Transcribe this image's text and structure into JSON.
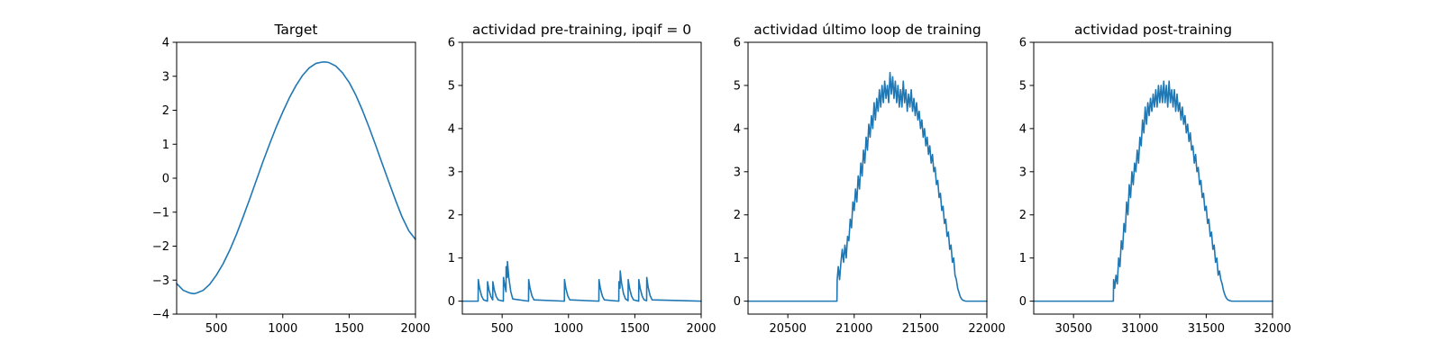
{
  "chart_data": [
    {
      "type": "line",
      "title": "Target",
      "xlabel": "",
      "ylabel": "",
      "xlim": [
        200,
        2000
      ],
      "ylim": [
        -4,
        4
      ],
      "xticks": [
        500,
        1000,
        1500,
        2000
      ],
      "yticks": [
        -4,
        -3,
        -2,
        -1,
        0,
        1,
        2,
        3,
        4
      ],
      "grid": false,
      "color": "#1f77b4",
      "series": [
        {
          "x": [
            200,
            250,
            300,
            330,
            350,
            400,
            450,
            500,
            550,
            600,
            650,
            700,
            750,
            800,
            850,
            900,
            950,
            1000,
            1050,
            1100,
            1150,
            1200,
            1250,
            1300,
            1325,
            1350,
            1400,
            1450,
            1500,
            1550,
            1600,
            1650,
            1700,
            1750,
            1800,
            1850,
            1900,
            1950,
            2000
          ],
          "y": [
            -3.1,
            -3.3,
            -3.38,
            -3.4,
            -3.38,
            -3.3,
            -3.12,
            -2.85,
            -2.52,
            -2.12,
            -1.66,
            -1.15,
            -0.62,
            -0.07,
            0.48,
            1.0,
            1.5,
            1.95,
            2.37,
            2.73,
            3.03,
            3.25,
            3.38,
            3.42,
            3.42,
            3.4,
            3.3,
            3.1,
            2.82,
            2.45,
            2.0,
            1.5,
            0.97,
            0.42,
            -0.12,
            -0.65,
            -1.15,
            -1.55,
            -1.8
          ]
        }
      ]
    },
    {
      "type": "line",
      "title": "actividad pre-training, ipqif = 0",
      "xlabel": "",
      "ylabel": "",
      "xlim": [
        200,
        2000
      ],
      "ylim": [
        -0.3,
        6
      ],
      "xticks": [
        500,
        1000,
        1500,
        2000
      ],
      "yticks": [
        0,
        1,
        2,
        3,
        4,
        5,
        6
      ],
      "grid": false,
      "color": "#1f77b4",
      "series": [
        {
          "x": [
            200,
            319,
            320,
            330,
            345,
            360,
            389,
            390,
            400,
            415,
            425,
            429,
            430,
            440,
            455,
            470,
            509,
            510,
            520,
            529,
            530,
            538,
            540,
            550,
            565,
            580,
            699,
            700,
            710,
            725,
            740,
            969,
            970,
            980,
            995,
            1010,
            1229,
            1230,
            1240,
            1255,
            1270,
            1379,
            1380,
            1388,
            1390,
            1400,
            1415,
            1430,
            1449,
            1450,
            1460,
            1475,
            1490,
            1529,
            1530,
            1540,
            1555,
            1570,
            1589,
            1590,
            1600,
            1615,
            1630,
            2000
          ],
          "y": [
            0,
            0,
            0.5,
            0.3,
            0.12,
            0.03,
            0,
            0.45,
            0.27,
            0.11,
            0.05,
            0.03,
            0.45,
            0.27,
            0.11,
            0.03,
            0,
            0.55,
            0.36,
            0.22,
            0.8,
            0.55,
            0.92,
            0.55,
            0.22,
            0.05,
            0,
            0.5,
            0.3,
            0.12,
            0.03,
            0,
            0.5,
            0.3,
            0.12,
            0.03,
            0,
            0.5,
            0.3,
            0.12,
            0.03,
            0,
            0.45,
            0.3,
            0.7,
            0.42,
            0.17,
            0.05,
            0.01,
            0.5,
            0.3,
            0.12,
            0.03,
            0,
            0.5,
            0.3,
            0.12,
            0.03,
            0.01,
            0.55,
            0.33,
            0.13,
            0.03,
            0
          ]
        }
      ]
    },
    {
      "type": "line",
      "title": "actividad último loop de training",
      "xlabel": "",
      "ylabel": "",
      "xlim": [
        20200,
        22000
      ],
      "ylim": [
        -0.3,
        6
      ],
      "xticks": [
        20500,
        21000,
        21500,
        22000
      ],
      "yticks": [
        0,
        1,
        2,
        3,
        4,
        5,
        6
      ],
      "grid": false,
      "color": "#1f77b4",
      "series": [
        {
          "x": [
            20200,
            20870,
            20872,
            20880,
            20890,
            20900,
            20910,
            20920,
            20930,
            20940,
            20950,
            20960,
            20970,
            20980,
            20990,
            21000,
            21010,
            21020,
            21030,
            21040,
            21050,
            21060,
            21070,
            21080,
            21090,
            21100,
            21110,
            21120,
            21130,
            21140,
            21150,
            21160,
            21170,
            21180,
            21190,
            21200,
            21210,
            21220,
            21230,
            21240,
            21250,
            21260,
            21270,
            21280,
            21290,
            21300,
            21310,
            21320,
            21330,
            21340,
            21350,
            21360,
            21370,
            21380,
            21390,
            21400,
            21410,
            21420,
            21430,
            21440,
            21450,
            21460,
            21470,
            21480,
            21490,
            21500,
            21510,
            21520,
            21530,
            21540,
            21550,
            21560,
            21570,
            21580,
            21590,
            21600,
            21610,
            21620,
            21630,
            21640,
            21650,
            21660,
            21670,
            21680,
            21690,
            21700,
            21710,
            21720,
            21730,
            21740,
            21750,
            21760,
            21770,
            21780,
            21790,
            21800,
            21810,
            21820,
            21830,
            21840,
            21850,
            21870,
            21900,
            21950,
            22000
          ],
          "y": [
            0,
            0,
            0.5,
            0.8,
            0.5,
            0.9,
            1.2,
            0.9,
            1.3,
            1.0,
            1.5,
            1.4,
            1.9,
            1.7,
            2.3,
            2.1,
            2.6,
            2.3,
            2.9,
            2.6,
            3.2,
            2.9,
            3.5,
            3.2,
            3.8,
            3.5,
            4.1,
            3.8,
            4.3,
            4.0,
            4.6,
            4.2,
            4.7,
            4.4,
            4.9,
            4.5,
            5.0,
            4.6,
            5.1,
            4.7,
            5.0,
            4.6,
            5.3,
            4.8,
            5.2,
            4.7,
            5.1,
            4.6,
            5.0,
            4.5,
            4.9,
            4.5,
            5.1,
            4.6,
            4.9,
            4.4,
            4.8,
            4.5,
            4.9,
            4.4,
            4.7,
            4.3,
            4.6,
            4.2,
            4.4,
            4.0,
            4.2,
            3.8,
            4.0,
            3.6,
            3.8,
            3.4,
            3.6,
            3.2,
            3.4,
            3.0,
            3.1,
            2.7,
            2.8,
            2.4,
            2.5,
            2.1,
            2.2,
            1.8,
            1.9,
            1.5,
            1.6,
            1.2,
            1.3,
            0.9,
            1.0,
            0.6,
            0.5,
            0.3,
            0.2,
            0.1,
            0.05,
            0.02,
            0.01,
            0,
            0,
            0,
            0,
            0,
            0
          ]
        }
      ]
    },
    {
      "type": "line",
      "title": "actividad post-training",
      "xlabel": "",
      "ylabel": "",
      "xlim": [
        30200,
        32000
      ],
      "ylim": [
        -0.3,
        6
      ],
      "xticks": [
        30500,
        31000,
        31500,
        32000
      ],
      "yticks": [
        0,
        1,
        2,
        3,
        4,
        5,
        6
      ],
      "grid": false,
      "color": "#1f77b4",
      "series": [
        {
          "x": [
            30200,
            30800,
            30802,
            30810,
            30820,
            30830,
            30840,
            30850,
            30860,
            30870,
            30880,
            30890,
            30900,
            30910,
            30920,
            30930,
            30940,
            30950,
            30960,
            30970,
            30980,
            30990,
            31000,
            31010,
            31020,
            31030,
            31040,
            31050,
            31060,
            31070,
            31080,
            31090,
            31100,
            31110,
            31120,
            31130,
            31140,
            31150,
            31160,
            31170,
            31180,
            31190,
            31200,
            31210,
            31220,
            31230,
            31240,
            31250,
            31260,
            31270,
            31280,
            31290,
            31300,
            31310,
            31320,
            31330,
            31340,
            31350,
            31360,
            31370,
            31380,
            31390,
            31400,
            31410,
            31420,
            31430,
            31440,
            31450,
            31460,
            31470,
            31480,
            31490,
            31500,
            31510,
            31520,
            31530,
            31540,
            31550,
            31560,
            31570,
            31580,
            31590,
            31600,
            31610,
            31620,
            31630,
            31640,
            31650,
            31660,
            31670,
            31680,
            31690,
            31700,
            31710,
            31720,
            31730,
            31740,
            31750,
            31760,
            31770,
            31780,
            31790,
            31800,
            31820,
            31850,
            31900,
            32000
          ],
          "y": [
            0,
            0,
            0.5,
            0.3,
            0.6,
            0.4,
            1.0,
            0.8,
            1.4,
            1.2,
            1.8,
            1.6,
            2.3,
            2.0,
            2.7,
            2.4,
            3.0,
            2.7,
            3.2,
            3.0,
            3.5,
            3.2,
            3.8,
            3.6,
            4.2,
            3.9,
            4.5,
            4.1,
            4.6,
            4.3,
            4.7,
            4.4,
            4.8,
            4.5,
            4.9,
            4.5,
            5.0,
            4.6,
            5.0,
            4.6,
            5.1,
            4.6,
            5.0,
            4.5,
            5.1,
            4.6,
            4.9,
            4.5,
            4.9,
            4.4,
            4.8,
            4.4,
            4.6,
            4.2,
            4.5,
            4.1,
            4.3,
            3.9,
            4.1,
            3.7,
            3.9,
            3.5,
            3.6,
            3.2,
            3.4,
            3.0,
            3.1,
            2.7,
            2.8,
            2.4,
            2.5,
            2.1,
            2.2,
            1.8,
            1.9,
            1.5,
            1.6,
            1.2,
            1.3,
            0.9,
            1.0,
            0.6,
            0.7,
            0.5,
            0.4,
            0.25,
            0.15,
            0.08,
            0.04,
            0.02,
            0.01,
            0,
            0,
            0,
            0,
            0,
            0,
            0,
            0,
            0,
            0,
            0,
            0,
            0,
            0,
            0,
            0
          ]
        }
      ]
    }
  ]
}
